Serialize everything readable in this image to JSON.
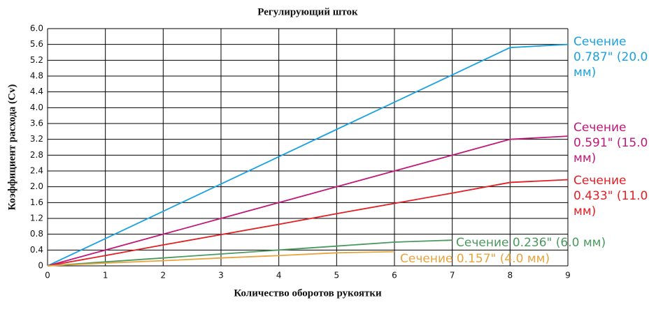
{
  "chart_data": {
    "type": "line",
    "title": "Регулирующий шток",
    "xlabel": "Количество оборотов рукоятки",
    "ylabel": "Коэффициент расхода (Cv)",
    "x": [
      0,
      1,
      2,
      3,
      4,
      5,
      6,
      7,
      8,
      9
    ],
    "xlim": [
      0,
      9
    ],
    "xticks": [
      0,
      1,
      2,
      3,
      4,
      5,
      6,
      7,
      8,
      9
    ],
    "ylim": [
      0,
      6
    ],
    "yticks": [
      0,
      0.4,
      0.8,
      1.2,
      1.6,
      {
        "value": 2,
        "label": "2.0"
      },
      2.4,
      2.8,
      3.2,
      3.6,
      {
        "value": 4,
        "label": "4.0"
      },
      4.4,
      4.8,
      5.2,
      5.6,
      {
        "value": 6,
        "label": "6.0"
      }
    ],
    "grid": true,
    "series": [
      {
        "name": "Сечение 0.787\" (20.0 мм)",
        "color": "#1ba1e2",
        "values": [
          0,
          0.69,
          1.38,
          2.07,
          2.76,
          3.45,
          4.14,
          4.83,
          5.52,
          5.6
        ]
      },
      {
        "name": "Сечение 0.591\" (15.0 мм)",
        "color": "#c0187a",
        "values": [
          0,
          0.4,
          0.8,
          1.2,
          1.6,
          2.0,
          2.4,
          2.8,
          3.2,
          3.28
        ]
      },
      {
        "name": "Сечение 0.433\" (11.0 мм)",
        "color": "#e31e24",
        "values": [
          0,
          0.26,
          0.53,
          0.79,
          1.05,
          1.32,
          1.58,
          1.84,
          2.11,
          2.18
        ]
      },
      {
        "name": "Сечение 0.236\" (6.0 мм)",
        "color": "#4a9a5e",
        "values": [
          0,
          0.1,
          0.2,
          0.3,
          0.4,
          0.5,
          0.6,
          0.65,
          null,
          null
        ]
      },
      {
        "name": "Сечение 0.157\" (4.0 мм)",
        "color": "#e8a33c",
        "values": [
          0,
          0.07,
          0.13,
          0.2,
          0.26,
          0.33,
          0.36,
          null,
          null,
          null
        ]
      }
    ]
  }
}
